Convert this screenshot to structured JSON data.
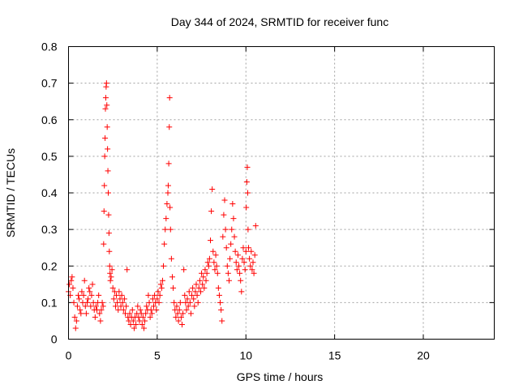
{
  "chart_data": {
    "type": "scatter",
    "title": "Day 344 of 2024, SRMTID for receiver func",
    "xlabel": "GPS time / hours",
    "ylabel": "SRMTID / TECUs",
    "xlim": [
      0,
      24
    ],
    "ylim": [
      0,
      0.8
    ],
    "xticks": [
      0,
      5,
      10,
      15,
      20
    ],
    "xtick_labels": [
      "0",
      "5",
      "10",
      "15",
      "20"
    ],
    "yticks": [
      0,
      0.1,
      0.2,
      0.3,
      0.4,
      0.5,
      0.6,
      0.7,
      0.8
    ],
    "ytick_labels": [
      "0",
      "0.1",
      "0.2",
      "0.3",
      "0.4",
      "0.5",
      "0.6",
      "0.7",
      "0.8"
    ],
    "grid": true,
    "marker": "plus",
    "color": "#ff0000",
    "series": [
      {
        "name": "SRMTID",
        "points": [
          [
            0.0,
            0.13
          ],
          [
            0.05,
            0.15
          ],
          [
            0.1,
            0.12
          ],
          [
            0.15,
            0.16
          ],
          [
            0.2,
            0.17
          ],
          [
            0.25,
            0.14
          ],
          [
            0.3,
            0.1
          ],
          [
            0.35,
            0.06
          ],
          [
            0.4,
            0.03
          ],
          [
            0.45,
            0.05
          ],
          [
            0.5,
            0.09
          ],
          [
            0.55,
            0.12
          ],
          [
            0.6,
            0.11
          ],
          [
            0.65,
            0.08
          ],
          [
            0.7,
            0.07
          ],
          [
            0.75,
            0.13
          ],
          [
            0.8,
            0.1
          ],
          [
            0.85,
            0.12
          ],
          [
            0.9,
            0.16
          ],
          [
            0.95,
            0.09
          ],
          [
            1.0,
            0.07
          ],
          [
            1.05,
            0.1
          ],
          [
            1.1,
            0.11
          ],
          [
            1.15,
            0.14
          ],
          [
            1.2,
            0.13
          ],
          [
            1.25,
            0.09
          ],
          [
            1.3,
            0.12
          ],
          [
            1.35,
            0.15
          ],
          [
            1.4,
            0.1
          ],
          [
            1.45,
            0.08
          ],
          [
            1.5,
            0.06
          ],
          [
            1.55,
            0.09
          ],
          [
            1.6,
            0.08
          ],
          [
            1.65,
            0.1
          ],
          [
            1.7,
            0.12
          ],
          [
            1.75,
            0.07
          ],
          [
            1.8,
            0.05
          ],
          [
            1.85,
            0.08
          ],
          [
            1.9,
            0.1
          ],
          [
            1.95,
            0.09
          ],
          [
            1.98,
            0.26
          ],
          [
            2.0,
            0.35
          ],
          [
            2.02,
            0.42
          ],
          [
            2.04,
            0.5
          ],
          [
            2.06,
            0.55
          ],
          [
            2.08,
            0.63
          ],
          [
            2.1,
            0.66
          ],
          [
            2.12,
            0.69
          ],
          [
            2.14,
            0.7
          ],
          [
            2.16,
            0.64
          ],
          [
            2.18,
            0.58
          ],
          [
            2.2,
            0.52
          ],
          [
            2.22,
            0.46
          ],
          [
            2.24,
            0.4
          ],
          [
            2.26,
            0.34
          ],
          [
            2.28,
            0.29
          ],
          [
            2.3,
            0.24
          ],
          [
            2.32,
            0.2
          ],
          [
            2.34,
            0.18
          ],
          [
            2.36,
            0.16
          ],
          [
            2.4,
            0.17
          ],
          [
            2.45,
            0.19
          ],
          [
            2.5,
            0.14
          ],
          [
            2.55,
            0.11
          ],
          [
            2.6,
            0.13
          ],
          [
            2.65,
            0.09
          ],
          [
            2.7,
            0.12
          ],
          [
            2.75,
            0.1
          ],
          [
            2.8,
            0.08
          ],
          [
            2.85,
            0.13
          ],
          [
            2.9,
            0.11
          ],
          [
            2.95,
            0.09
          ],
          [
            3.0,
            0.12
          ],
          [
            3.05,
            0.1
          ],
          [
            3.1,
            0.08
          ],
          [
            3.15,
            0.11
          ],
          [
            3.2,
            0.07
          ],
          [
            3.25,
            0.09
          ],
          [
            3.3,
            0.19
          ],
          [
            3.35,
            0.06
          ],
          [
            3.4,
            0.05
          ],
          [
            3.45,
            0.07
          ],
          [
            3.5,
            0.04
          ],
          [
            3.55,
            0.06
          ],
          [
            3.6,
            0.08
          ],
          [
            3.65,
            0.05
          ],
          [
            3.7,
            0.03
          ],
          [
            3.75,
            0.06
          ],
          [
            3.8,
            0.04
          ],
          [
            3.85,
            0.07
          ],
          [
            3.9,
            0.09
          ],
          [
            3.95,
            0.06
          ],
          [
            4.0,
            0.05
          ],
          [
            4.05,
            0.08
          ],
          [
            4.1,
            0.07
          ],
          [
            4.15,
            0.04
          ],
          [
            4.2,
            0.06
          ],
          [
            4.25,
            0.03
          ],
          [
            4.3,
            0.05
          ],
          [
            4.35,
            0.07
          ],
          [
            4.4,
            0.09
          ],
          [
            4.45,
            0.08
          ],
          [
            4.5,
            0.12
          ],
          [
            4.55,
            0.1
          ],
          [
            4.6,
            0.06
          ],
          [
            4.65,
            0.08
          ],
          [
            4.7,
            0.07
          ],
          [
            4.75,
            0.11
          ],
          [
            4.8,
            0.09
          ],
          [
            4.85,
            0.12
          ],
          [
            4.9,
            0.1
          ],
          [
            4.95,
            0.08
          ],
          [
            5.0,
            0.11
          ],
          [
            5.05,
            0.13
          ],
          [
            5.1,
            0.1
          ],
          [
            5.15,
            0.12
          ],
          [
            5.2,
            0.15
          ],
          [
            5.25,
            0.14
          ],
          [
            5.3,
            0.16
          ],
          [
            5.35,
            0.2
          ],
          [
            5.4,
            0.26
          ],
          [
            5.45,
            0.3
          ],
          [
            5.5,
            0.33
          ],
          [
            5.55,
            0.37
          ],
          [
            5.6,
            0.4
          ],
          [
            5.62,
            0.42
          ],
          [
            5.65,
            0.48
          ],
          [
            5.68,
            0.58
          ],
          [
            5.7,
            0.66
          ],
          [
            5.72,
            0.36
          ],
          [
            5.75,
            0.3
          ],
          [
            5.8,
            0.22
          ],
          [
            5.85,
            0.17
          ],
          [
            5.9,
            0.14
          ],
          [
            5.95,
            0.1
          ],
          [
            6.0,
            0.08
          ],
          [
            6.05,
            0.06
          ],
          [
            6.1,
            0.09
          ],
          [
            6.15,
            0.07
          ],
          [
            6.2,
            0.05
          ],
          [
            6.25,
            0.08
          ],
          [
            6.3,
            0.1
          ],
          [
            6.35,
            0.06
          ],
          [
            6.4,
            0.04
          ],
          [
            6.45,
            0.07
          ],
          [
            6.5,
            0.19
          ],
          [
            6.55,
            0.12
          ],
          [
            6.6,
            0.1
          ],
          [
            6.65,
            0.08
          ],
          [
            6.7,
            0.11
          ],
          [
            6.75,
            0.09
          ],
          [
            6.8,
            0.13
          ],
          [
            6.85,
            0.1
          ],
          [
            6.9,
            0.07
          ],
          [
            6.95,
            0.12
          ],
          [
            7.0,
            0.14
          ],
          [
            7.05,
            0.11
          ],
          [
            7.1,
            0.09
          ],
          [
            7.15,
            0.13
          ],
          [
            7.2,
            0.15
          ],
          [
            7.25,
            0.12
          ],
          [
            7.3,
            0.1
          ],
          [
            7.35,
            0.14
          ],
          [
            7.4,
            0.16
          ],
          [
            7.45,
            0.13
          ],
          [
            7.5,
            0.18
          ],
          [
            7.55,
            0.15
          ],
          [
            7.6,
            0.17
          ],
          [
            7.65,
            0.14
          ],
          [
            7.7,
            0.19
          ],
          [
            7.75,
            0.16
          ],
          [
            7.8,
            0.18
          ],
          [
            7.85,
            0.21
          ],
          [
            7.9,
            0.2
          ],
          [
            7.95,
            0.22
          ],
          [
            8.0,
            0.27
          ],
          [
            8.05,
            0.35
          ],
          [
            8.1,
            0.41
          ],
          [
            8.15,
            0.24
          ],
          [
            8.2,
            0.21
          ],
          [
            8.25,
            0.19
          ],
          [
            8.3,
            0.23
          ],
          [
            8.35,
            0.2
          ],
          [
            8.4,
            0.18
          ],
          [
            8.45,
            0.14
          ],
          [
            8.5,
            0.12
          ],
          [
            8.55,
            0.1
          ],
          [
            8.6,
            0.08
          ],
          [
            8.65,
            0.05
          ],
          [
            8.7,
            0.28
          ],
          [
            8.75,
            0.34
          ],
          [
            8.8,
            0.38
          ],
          [
            8.85,
            0.3
          ],
          [
            8.9,
            0.25
          ],
          [
            8.95,
            0.2
          ],
          [
            9.0,
            0.18
          ],
          [
            9.05,
            0.16
          ],
          [
            9.1,
            0.22
          ],
          [
            9.15,
            0.26
          ],
          [
            9.2,
            0.3
          ],
          [
            9.25,
            0.37
          ],
          [
            9.3,
            0.33
          ],
          [
            9.35,
            0.28
          ],
          [
            9.4,
            0.24
          ],
          [
            9.45,
            0.21
          ],
          [
            9.5,
            0.19
          ],
          [
            9.55,
            0.23
          ],
          [
            9.6,
            0.2
          ],
          [
            9.65,
            0.18
          ],
          [
            9.7,
            0.16
          ],
          [
            9.75,
            0.13
          ],
          [
            9.8,
            0.22
          ],
          [
            9.85,
            0.25
          ],
          [
            9.9,
            0.21
          ],
          [
            9.95,
            0.19
          ],
          [
            10.0,
            0.24
          ],
          [
            10.02,
            0.36
          ],
          [
            10.05,
            0.43
          ],
          [
            10.08,
            0.47
          ],
          [
            10.1,
            0.4
          ],
          [
            10.12,
            0.3
          ],
          [
            10.15,
            0.25
          ],
          [
            10.2,
            0.22
          ],
          [
            10.25,
            0.2
          ],
          [
            10.3,
            0.24
          ],
          [
            10.35,
            0.19
          ],
          [
            10.4,
            0.21
          ],
          [
            10.45,
            0.18
          ],
          [
            10.5,
            0.23
          ],
          [
            10.55,
            0.31
          ]
        ]
      }
    ]
  }
}
